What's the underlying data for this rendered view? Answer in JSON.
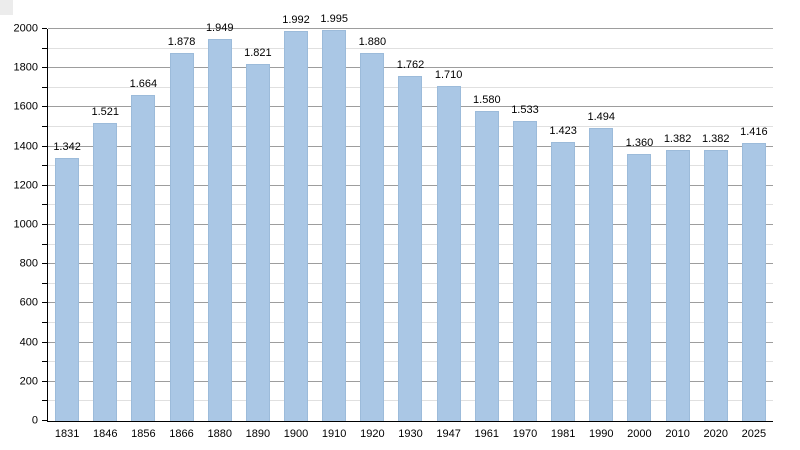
{
  "chart_data": {
    "type": "bar",
    "title": "",
    "xlabel": "",
    "ylabel": "",
    "categories": [
      "1831",
      "1846",
      "1856",
      "1866",
      "1880",
      "1890",
      "1900",
      "1910",
      "1920",
      "1930",
      "1947",
      "1961",
      "1970",
      "1981",
      "1990",
      "2000",
      "2010",
      "2020",
      "2025"
    ],
    "values": [
      1342,
      1521,
      1664,
      1878,
      1949,
      1821,
      1992,
      1995,
      1880,
      1762,
      1710,
      1580,
      1533,
      1423,
      1494,
      1360,
      1382,
      1382,
      1416
    ],
    "value_labels": [
      "1.342",
      "1.521",
      "1.664",
      "1.878",
      "1.949",
      "1.821",
      "1.992",
      "1.995",
      "1.880",
      "1.762",
      "1.710",
      "1.580",
      "1.533",
      "1.423",
      "1.494",
      "1.360",
      "1.382",
      "1.382",
      "1.416"
    ],
    "ylim": [
      0,
      2000
    ],
    "y_major_ticks": [
      0,
      200,
      400,
      600,
      800,
      1000,
      1200,
      1400,
      1600,
      1800,
      2000
    ],
    "y_tick_labels": [
      "0",
      "200",
      "400",
      "600",
      "800",
      "1000",
      "1200",
      "1400",
      "1600",
      "1800",
      "2000"
    ],
    "y_minor_step": 100,
    "grid": "on",
    "legend": "none",
    "bar_color": "#aac7e5",
    "bar_border_color": "#9cbbda",
    "grid_major_color": "#9d9d9d",
    "grid_minor_color": "#e0e0e0",
    "axis_color": "#000000",
    "background_color": "#ffffff"
  }
}
